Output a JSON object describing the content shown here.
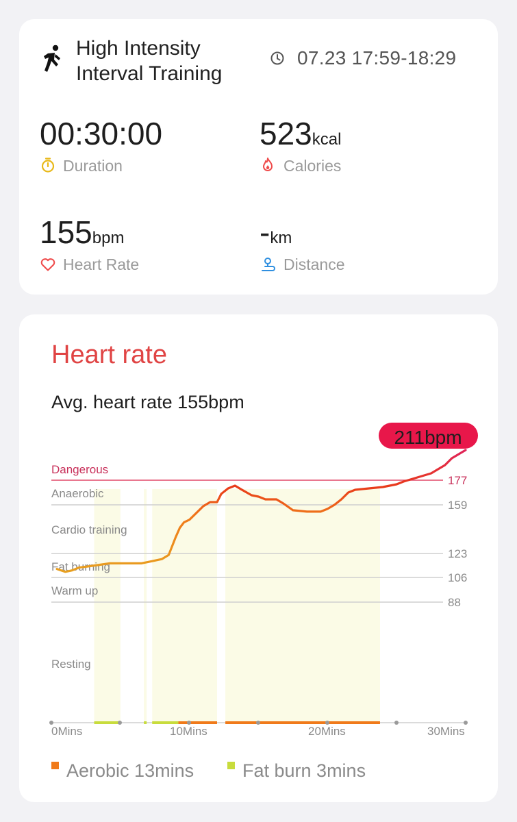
{
  "summary": {
    "workout_title_line1": "High Intensity",
    "workout_title_line2": "Interval Training",
    "time_range": "07.23 17:59-18:29",
    "duration": {
      "value": "00:30:00",
      "label": "Duration"
    },
    "calories": {
      "value": "523",
      "unit": "kcal",
      "label": "Calories"
    },
    "heart_rate": {
      "value": "155",
      "unit": "bpm",
      "label": "Heart Rate"
    },
    "distance": {
      "value": "-",
      "unit": "km",
      "label": "Distance"
    }
  },
  "heart_rate_section": {
    "title": "Heart rate",
    "avg_text": "Avg. heart rate 155bpm",
    "max_badge": "211bpm",
    "zones": [
      {
        "name": "Dangerous",
        "threshold": "177"
      },
      {
        "name": "Anaerobic",
        "threshold": "159"
      },
      {
        "name": "Cardio training",
        "threshold": "123"
      },
      {
        "name": "Fat burning",
        "threshold": "106"
      },
      {
        "name": "Warm up",
        "threshold": "88"
      },
      {
        "name": "Resting",
        "threshold": ""
      }
    ],
    "x_ticks": [
      "0Mins",
      "10Mins",
      "20Mins",
      "30Mins"
    ],
    "legend": [
      {
        "label": "Aerobic 13mins",
        "color": "#f07a1a"
      },
      {
        "label": "Fat burn 3mins",
        "color": "#c8dc3c"
      }
    ]
  },
  "chart_data": {
    "type": "line",
    "xlabel": "",
    "ylabel": "",
    "xlim": [
      0,
      30
    ],
    "x_unit": "Mins",
    "y_unit": "bpm",
    "zone_thresholds": [
      177,
      159,
      123,
      106,
      88
    ],
    "max_bpm": 211,
    "avg_bpm": 155,
    "series": [
      {
        "x": [
          0.4,
          1.0,
          1.5,
          2.0,
          2.8,
          3.5,
          4.2,
          4.5,
          5.5,
          6.5,
          7.0,
          7.5,
          8.0,
          8.5,
          9.0,
          9.3,
          9.6,
          10.0,
          10.5,
          11.0,
          11.5,
          12.0,
          12.3,
          12.8,
          13.3,
          13.8,
          14.5,
          15.0,
          15.5,
          16.3,
          16.8,
          17.5,
          18.5,
          19.5,
          20.0,
          20.5,
          21.0,
          21.5,
          22.0,
          23.0,
          24.0,
          24.5,
          25.0,
          25.5,
          26.5,
          27.5,
          28.5,
          29.0,
          30.0
        ],
        "y": [
          112,
          110,
          111,
          113,
          114,
          115,
          116,
          116,
          116,
          116,
          117,
          118,
          119,
          122,
          135,
          142,
          146,
          148,
          153,
          158,
          161,
          161,
          167,
          171,
          173,
          170,
          166,
          165,
          163,
          163,
          160,
          155,
          154,
          154,
          156,
          159,
          163,
          168,
          170,
          171,
          172,
          173,
          174,
          176,
          179,
          182,
          188,
          193,
          199
        ]
      }
    ],
    "bottom_bars": [
      {
        "zone": "Fat burn",
        "x_start": 3.1,
        "x_end": 5.0
      },
      {
        "zone": "Fat burn",
        "x_start": 6.7,
        "x_end": 6.9
      },
      {
        "zone": "Fat burn",
        "x_start": 7.3,
        "x_end": 9.2
      },
      {
        "zone": "Aerobic",
        "x_start": 9.2,
        "x_end": 12.0
      },
      {
        "zone": "Aerobic",
        "x_start": 12.6,
        "x_end": 23.8
      }
    ],
    "shaded_ranges": [
      [
        3.1,
        5.0
      ],
      [
        6.7,
        6.9
      ],
      [
        7.3,
        12.0
      ],
      [
        12.6,
        23.8
      ]
    ]
  }
}
